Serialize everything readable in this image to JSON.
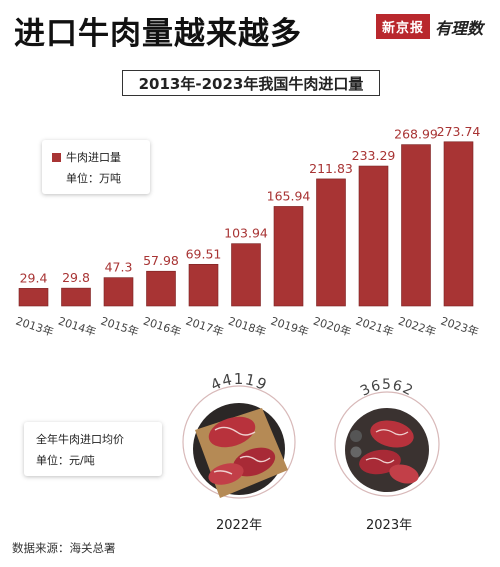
{
  "header": {
    "headline": "进口牛肉量越来越多",
    "brand_box": "新京报",
    "brand_script": "有理数"
  },
  "chart_data": {
    "type": "bar",
    "title": "2013年-2023年我国牛肉进口量",
    "categories": [
      "2013年",
      "2014年",
      "2015年",
      "2016年",
      "2017年",
      "2018年",
      "2019年",
      "2020年",
      "2021年",
      "2022年",
      "2023年"
    ],
    "series": [
      {
        "name": "牛肉进口量",
        "values": [
          29.4,
          29.8,
          47.3,
          57.98,
          69.51,
          103.94,
          165.94,
          211.83,
          233.29,
          268.99,
          273.74
        ]
      }
    ],
    "value_labels": [
      "29.4",
      "29.8",
      "47.3",
      "57.98",
      "69.51",
      "103.94",
      "165.94",
      "211.83",
      "233.29",
      "268.99",
      "273.74"
    ],
    "unit": "单位：万吨",
    "bar_color": "#a83434"
  },
  "legend": {
    "series_label": "牛肉进口量",
    "unit": "单位：万吨"
  },
  "price": {
    "legend_title": "全年牛肉进口均价",
    "legend_unit": "单位：元/吨",
    "items": [
      {
        "year": "2022年",
        "value": 44119
      },
      {
        "year": "2023年",
        "value": 36562
      }
    ]
  },
  "footer": {
    "source": "数据来源：海关总署"
  },
  "colors": {
    "accent": "#a83434",
    "brand": "#b9282d"
  }
}
